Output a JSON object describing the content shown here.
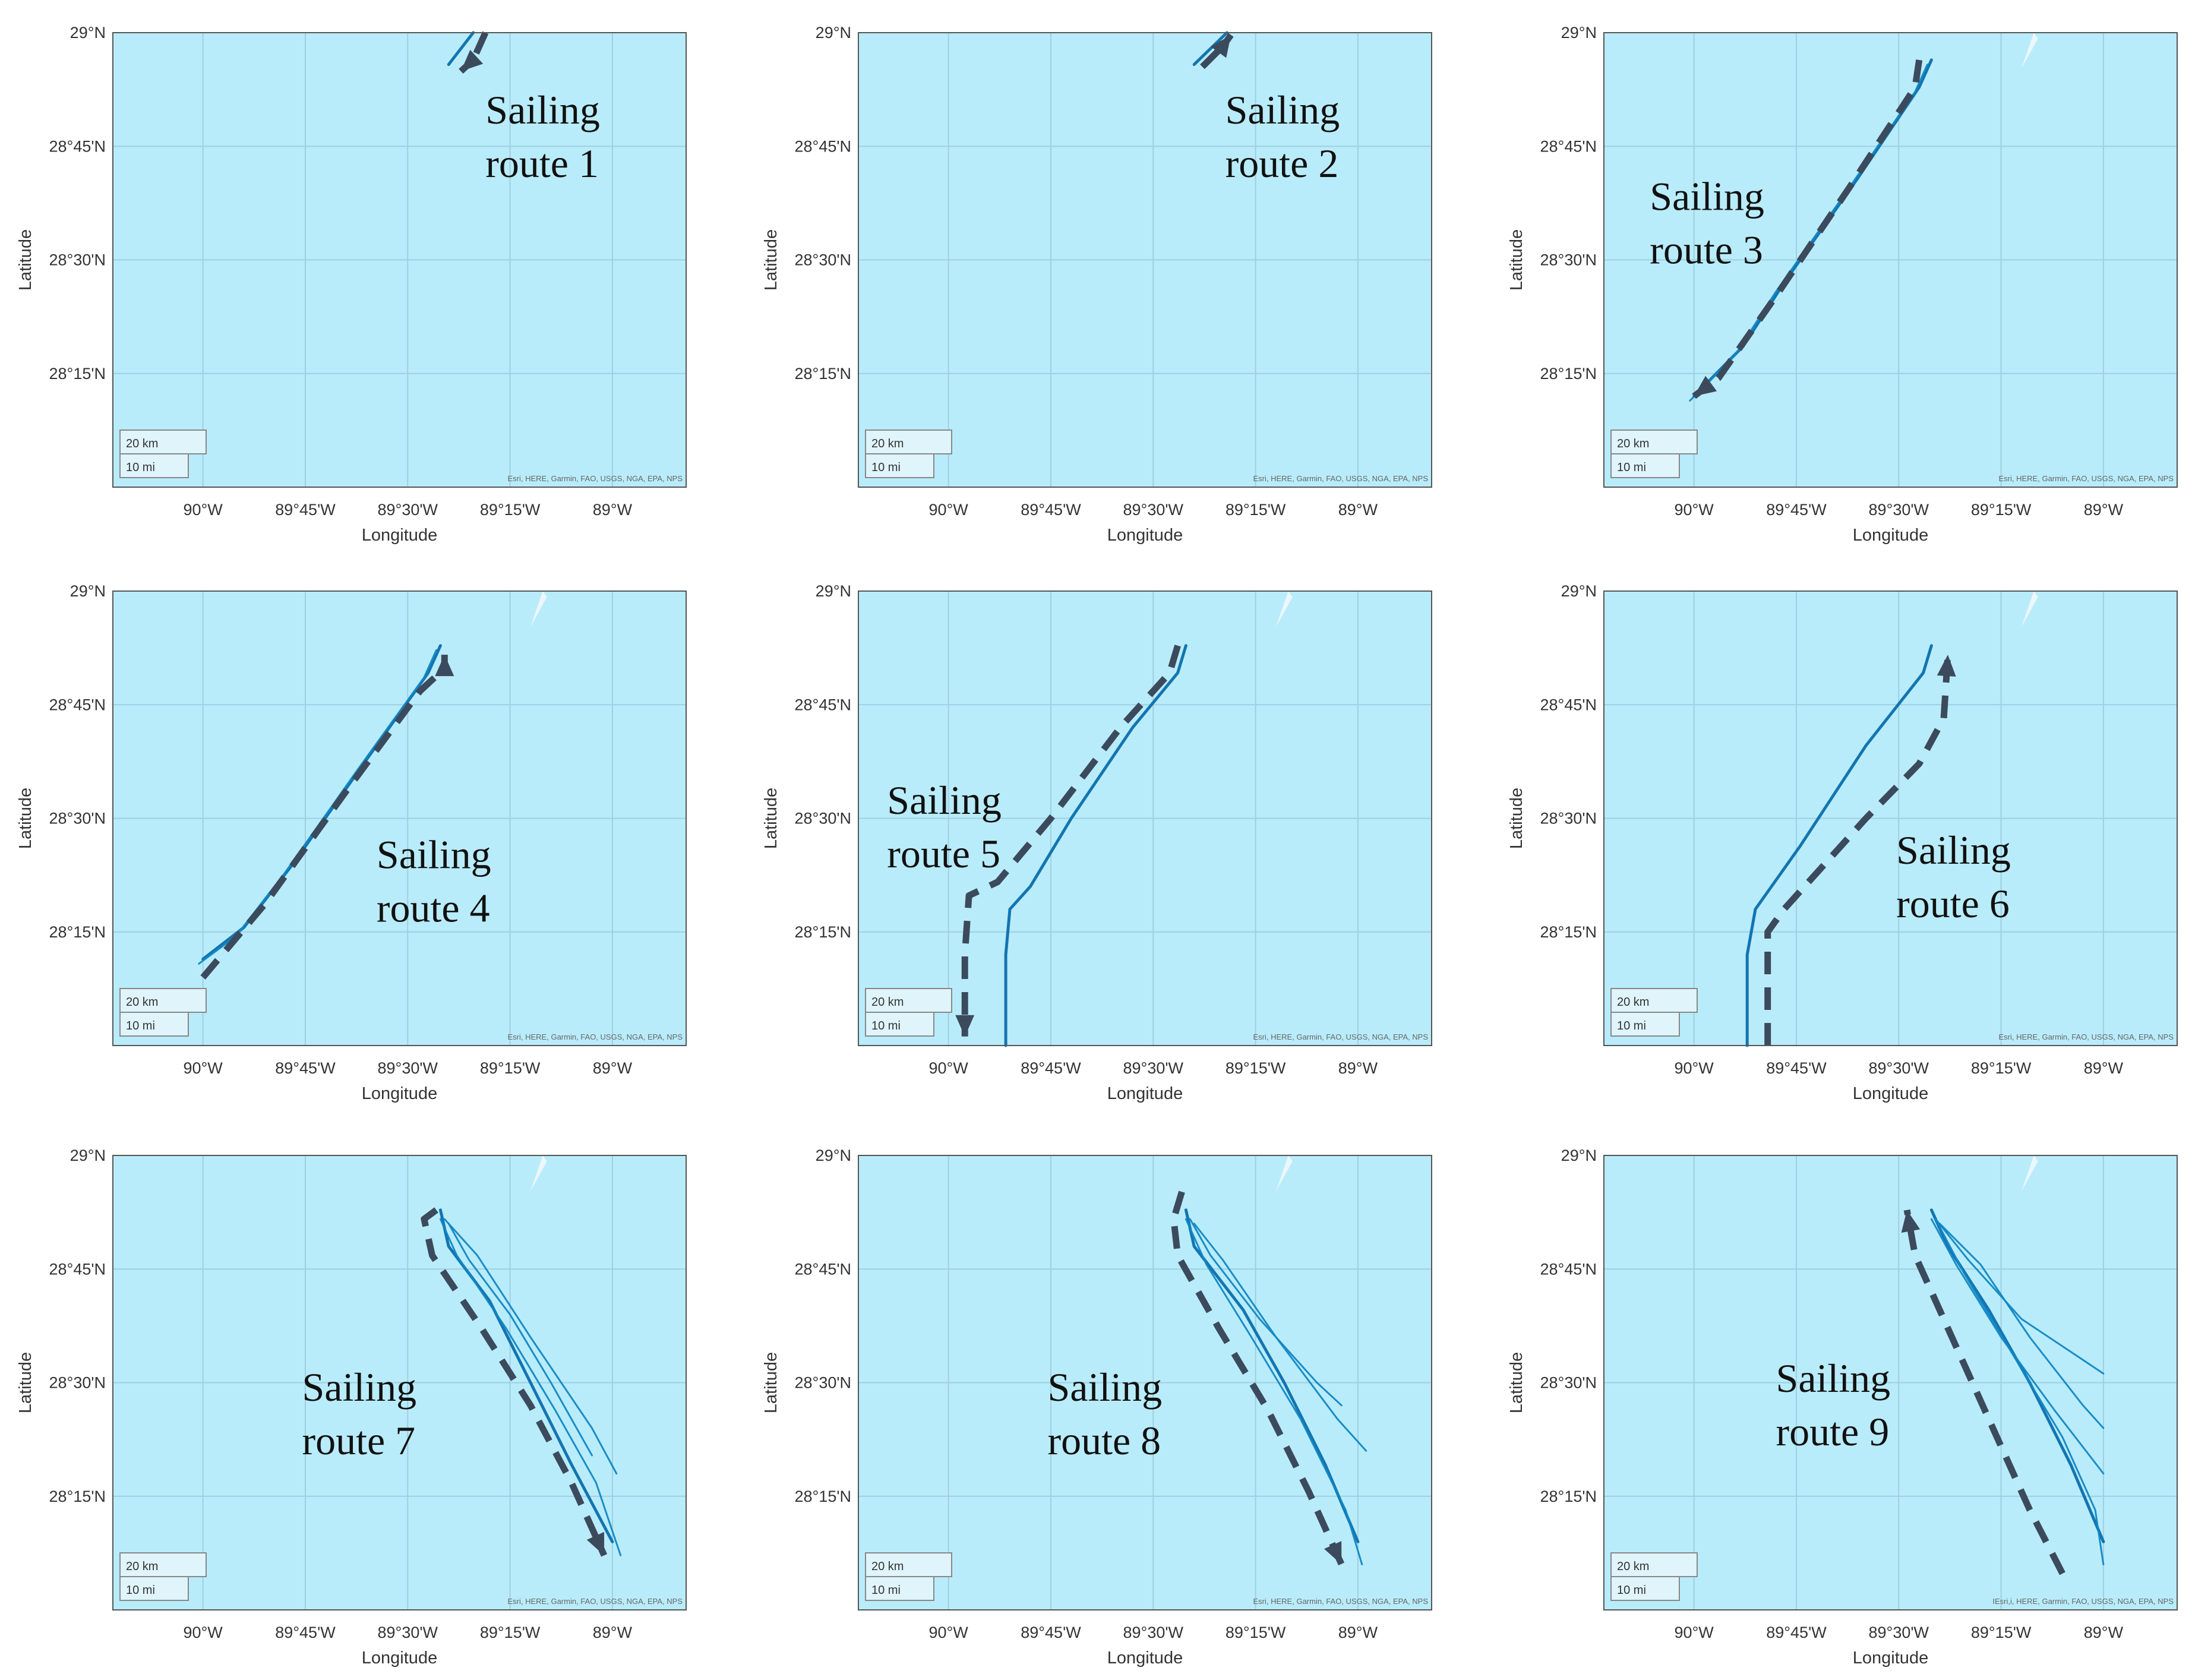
{
  "colors": {
    "sea": "#b9ecfa",
    "track": "#1187c4",
    "track_dark": "#0a6fad",
    "arrow": "#3b4a5c",
    "grid": "#9fcfe0",
    "frame": "#555555",
    "scalebox": "#dff4fb"
  },
  "axes": {
    "xlabel": "Longitude",
    "ylabel": "Latitude",
    "lat_ticks": [
      "29°N",
      "28°45'N",
      "28°30'N",
      "28°15'N"
    ],
    "lon_ticks": [
      "90°W",
      "89°45'W",
      "89°30'W",
      "89°15'W",
      "89°W"
    ],
    "lat_range": [
      28.0,
      29.0
    ],
    "lon_range": [
      -90.22,
      -88.82
    ]
  },
  "scalebar": {
    "km": "20 km",
    "mi": "10 mi"
  },
  "attribution": "Esri, HERE, Garmin, FAO, USGS, NGA, EPA, NPS",
  "attribution_alt": "IEsri,i, HERE, Garmin, FAO, USGS, NGA, EPA, NPS",
  "panels": [
    {
      "id": 1,
      "label_line1": "Sailing",
      "label_line2": "route 1",
      "tracks": [
        [
          [
            -89.34,
            29.0
          ],
          [
            -89.4,
            28.93
          ]
        ]
      ],
      "arrow": [
        [
          -89.31,
          29.0
        ],
        [
          -89.34,
          28.94
        ],
        [
          -89.37,
          28.915
        ]
      ]
    },
    {
      "id": 2,
      "label_line1": "Sailing",
      "label_line2": "route 2",
      "tracks": [
        [
          [
            -89.4,
            28.93
          ],
          [
            -89.32,
            29.0
          ]
        ]
      ],
      "arrow": [
        [
          -89.38,
          28.925
        ],
        [
          -89.33,
          28.97
        ],
        [
          -89.31,
          28.995
        ]
      ]
    },
    {
      "id": 3,
      "label_line1": "Sailing",
      "label_line2": "route 3",
      "tracks": [
        [
          [
            -89.42,
            28.94
          ],
          [
            -89.45,
            28.88
          ],
          [
            -89.6,
            28.68
          ],
          [
            -89.78,
            28.45
          ],
          [
            -89.88,
            28.31
          ],
          [
            -90.0,
            28.2
          ]
        ],
        [
          [
            -89.43,
            28.93
          ],
          [
            -89.46,
            28.87
          ],
          [
            -89.62,
            28.66
          ],
          [
            -89.8,
            28.43
          ],
          [
            -89.9,
            28.29
          ],
          [
            -90.01,
            28.19
          ]
        ]
      ],
      "arrow": [
        [
          -89.45,
          28.94
        ],
        [
          -89.46,
          28.88
        ],
        [
          -89.62,
          28.66
        ],
        [
          -89.8,
          28.42
        ],
        [
          -89.94,
          28.24
        ],
        [
          -90.0,
          28.2
        ]
      ]
    },
    {
      "id": 4,
      "label_line1": "Sailing",
      "label_line2": "route 4",
      "tracks": [
        [
          [
            -89.42,
            28.88
          ],
          [
            -89.45,
            28.82
          ],
          [
            -89.6,
            28.63
          ],
          [
            -89.78,
            28.4
          ],
          [
            -89.9,
            28.26
          ],
          [
            -90.0,
            28.19
          ]
        ],
        [
          [
            -89.43,
            28.87
          ],
          [
            -89.46,
            28.81
          ],
          [
            -89.62,
            28.61
          ],
          [
            -89.8,
            28.38
          ],
          [
            -89.92,
            28.24
          ],
          [
            -90.01,
            28.18
          ]
        ]
      ],
      "arrow": [
        [
          -90.0,
          28.15
        ],
        [
          -89.85,
          28.31
        ],
        [
          -89.65,
          28.56
        ],
        [
          -89.47,
          28.78
        ],
        [
          -89.41,
          28.83
        ],
        [
          -89.41,
          28.86
        ]
      ]
    },
    {
      "id": 5,
      "label_line1": "Sailing",
      "label_line2": "route 5",
      "tracks": [
        [
          [
            -89.42,
            28.88
          ],
          [
            -89.44,
            28.82
          ],
          [
            -89.55,
            28.7
          ],
          [
            -89.7,
            28.5
          ],
          [
            -89.8,
            28.35
          ],
          [
            -89.85,
            28.3
          ],
          [
            -89.86,
            28.2
          ],
          [
            -89.86,
            28.0
          ]
        ]
      ],
      "arrow": [
        [
          -89.44,
          28.88
        ],
        [
          -89.46,
          28.82
        ],
        [
          -89.58,
          28.7
        ],
        [
          -89.75,
          28.5
        ],
        [
          -89.88,
          28.36
        ],
        [
          -89.95,
          28.33
        ],
        [
          -89.96,
          28.2
        ],
        [
          -89.96,
          28.02
        ]
      ]
    },
    {
      "id": 6,
      "label_line1": "Sailing",
      "label_line2": "route 6",
      "tracks": [
        [
          [
            -89.42,
            28.88
          ],
          [
            -89.44,
            28.82
          ],
          [
            -89.58,
            28.66
          ],
          [
            -89.74,
            28.44
          ],
          [
            -89.85,
            28.3
          ],
          [
            -89.87,
            28.2
          ],
          [
            -89.87,
            28.0
          ]
        ]
      ],
      "arrow": [
        [
          -89.82,
          28.0
        ],
        [
          -89.82,
          28.25
        ],
        [
          -89.78,
          28.3
        ],
        [
          -89.58,
          28.5
        ],
        [
          -89.45,
          28.62
        ],
        [
          -89.39,
          28.72
        ],
        [
          -89.38,
          28.86
        ]
      ]
    },
    {
      "id": 7,
      "label_line1": "Sailing",
      "label_line2": "route 7",
      "tracks": [
        [
          [
            -89.42,
            28.88
          ],
          [
            -89.4,
            28.8
          ],
          [
            -89.3,
            28.68
          ],
          [
            -89.2,
            28.5
          ],
          [
            -89.1,
            28.32
          ],
          [
            -89.0,
            28.15
          ]
        ],
        [
          [
            -89.42,
            28.86
          ],
          [
            -89.38,
            28.78
          ],
          [
            -89.26,
            28.62
          ],
          [
            -89.14,
            28.44
          ],
          [
            -89.04,
            28.28
          ],
          [
            -88.98,
            28.12
          ]
        ],
        [
          [
            -89.4,
            28.85
          ],
          [
            -89.35,
            28.77
          ],
          [
            -89.25,
            28.65
          ],
          [
            -89.15,
            28.5
          ],
          [
            -89.05,
            28.34
          ]
        ],
        [
          [
            -89.41,
            28.86
          ],
          [
            -89.33,
            28.78
          ],
          [
            -89.2,
            28.6
          ],
          [
            -89.05,
            28.4
          ],
          [
            -88.99,
            28.3
          ]
        ]
      ],
      "arrow": [
        [
          -89.43,
          28.88
        ],
        [
          -89.46,
          28.86
        ],
        [
          -89.44,
          28.78
        ],
        [
          -89.32,
          28.62
        ],
        [
          -89.2,
          28.45
        ],
        [
          -89.1,
          28.28
        ],
        [
          -89.02,
          28.12
        ]
      ]
    },
    {
      "id": 8,
      "label_line1": "Sailing",
      "label_line2": "route 8",
      "tracks": [
        [
          [
            -89.42,
            28.88
          ],
          [
            -89.4,
            28.8
          ],
          [
            -89.28,
            28.66
          ],
          [
            -89.18,
            28.5
          ],
          [
            -89.08,
            28.32
          ],
          [
            -89.0,
            28.15
          ]
        ],
        [
          [
            -89.41,
            28.86
          ],
          [
            -89.36,
            28.78
          ],
          [
            -89.24,
            28.64
          ],
          [
            -89.1,
            28.5
          ],
          [
            -89.04,
            28.45
          ]
        ],
        [
          [
            -89.4,
            28.85
          ],
          [
            -89.33,
            28.77
          ],
          [
            -89.2,
            28.6
          ],
          [
            -89.05,
            28.42
          ],
          [
            -88.98,
            28.35
          ]
        ],
        [
          [
            -89.42,
            28.86
          ],
          [
            -89.37,
            28.76
          ],
          [
            -89.26,
            28.6
          ],
          [
            -89.14,
            28.42
          ],
          [
            -89.03,
            28.22
          ],
          [
            -88.99,
            28.1
          ]
        ]
      ],
      "arrow": [
        [
          -89.43,
          28.92
        ],
        [
          -89.45,
          28.86
        ],
        [
          -89.44,
          28.78
        ],
        [
          -89.34,
          28.62
        ],
        [
          -89.22,
          28.44
        ],
        [
          -89.12,
          28.26
        ],
        [
          -89.04,
          28.1
        ]
      ]
    },
    {
      "id": 9,
      "label_line1": "Sailing",
      "label_line2": "route 9",
      "tracks": [
        [
          [
            -89.42,
            28.88
          ],
          [
            -89.38,
            28.8
          ],
          [
            -89.28,
            28.66
          ],
          [
            -89.18,
            28.5
          ],
          [
            -89.08,
            28.32
          ],
          [
            -89.0,
            28.15
          ]
        ],
        [
          [
            -89.41,
            28.86
          ],
          [
            -89.33,
            28.77
          ],
          [
            -89.2,
            28.64
          ],
          [
            -89.05,
            28.55
          ],
          [
            -89.0,
            28.52
          ]
        ],
        [
          [
            -89.4,
            28.85
          ],
          [
            -89.3,
            28.76
          ],
          [
            -89.18,
            28.6
          ],
          [
            -89.05,
            28.45
          ],
          [
            -89.0,
            28.4
          ]
        ],
        [
          [
            -89.41,
            28.86
          ],
          [
            -89.34,
            28.74
          ],
          [
            -89.22,
            28.56
          ],
          [
            -89.1,
            28.38
          ],
          [
            -89.02,
            28.22
          ],
          [
            -89.0,
            28.1
          ]
        ],
        [
          [
            -89.42,
            28.86
          ],
          [
            -89.36,
            28.76
          ],
          [
            -89.25,
            28.6
          ],
          [
            -89.12,
            28.44
          ],
          [
            -89.0,
            28.3
          ]
        ]
      ],
      "arrow": [
        [
          -89.1,
          28.08
        ],
        [
          -89.18,
          28.22
        ],
        [
          -89.28,
          28.42
        ],
        [
          -89.38,
          28.62
        ],
        [
          -89.46,
          28.78
        ],
        [
          -89.48,
          28.88
        ]
      ]
    }
  ]
}
